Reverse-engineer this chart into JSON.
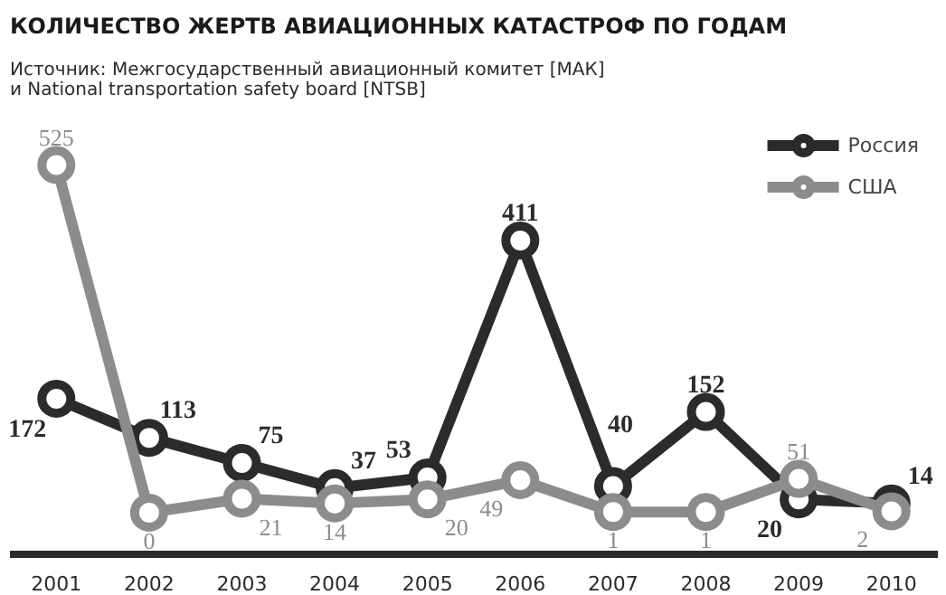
{
  "chart_data": {
    "type": "line",
    "title": "КОЛИЧЕСТВО ЖЕРТВ АВИАЦИОННЫХ КАТАСТРОФ ПО ГОДАМ",
    "subtitle": "Источник: Межгосударственный авиационный комитет [МАК]\nи National transportation safety board [NTSB]",
    "categories": [
      "2001",
      "2002",
      "2003",
      "2004",
      "2005",
      "2006",
      "2007",
      "2008",
      "2009",
      "2010"
    ],
    "series": [
      {
        "name": "Россия",
        "color": "#2b2b2b",
        "values": [
          172,
          113,
          75,
          37,
          53,
          411,
          40,
          152,
          20,
          14
        ]
      },
      {
        "name": "США",
        "color": "#8c8c8c",
        "values": [
          525,
          0,
          21,
          14,
          20,
          49,
          1,
          1,
          51,
          2
        ]
      }
    ],
    "data_labels": true,
    "legend": "top right",
    "marker": "circle",
    "grid": false
  }
}
